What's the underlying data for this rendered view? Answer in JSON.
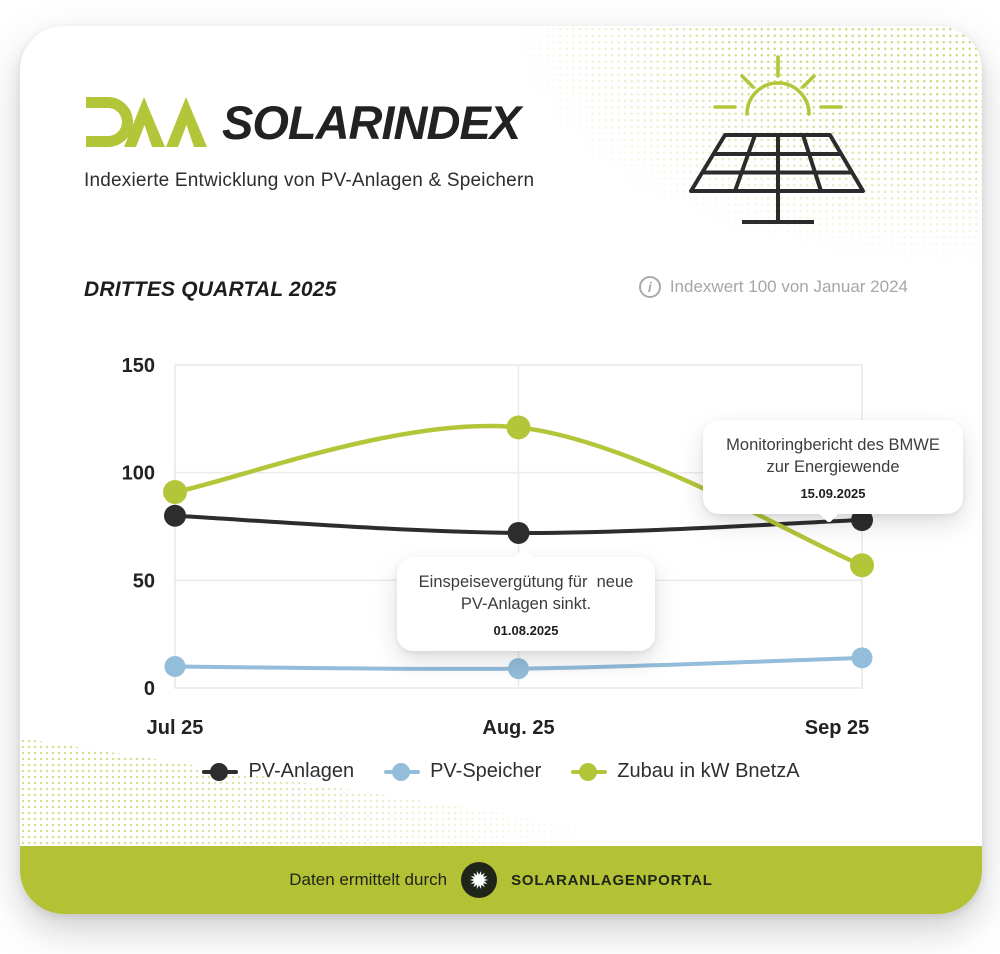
{
  "brand": {
    "logo": "DAA",
    "title": "SOLARINDEX",
    "subtitle": "Indexierte Entwicklung von PV-Anlagen & Speichern"
  },
  "section": {
    "heading": "DRITTES QUARTAL 2025",
    "info_icon": "i",
    "index_note": "Indexwert 100 von Januar 2024"
  },
  "chart_data": {
    "type": "line",
    "categories": [
      "Jul 25",
      "Aug. 25",
      "Sep 25"
    ],
    "series": [
      {
        "name": "PV-Anlagen",
        "color": "#2d2d2d",
        "values": [
          80,
          72,
          78
        ]
      },
      {
        "name": "PV-Speicher",
        "color": "#93bdda",
        "values": [
          10,
          9,
          14
        ]
      },
      {
        "name": "Zubau in kW BnetzA",
        "color": "#b3c63a",
        "values": [
          91,
          121,
          57
        ]
      }
    ],
    "ylim": [
      0,
      150
    ],
    "yticks": [
      0,
      50,
      100,
      150
    ],
    "grid": true,
    "legend_position": "bottom",
    "annotations": [
      {
        "line1": "Einspeisevergütung für  neue",
        "line2": "PV-Anlagen sinkt.",
        "date": "01.08.2025",
        "anchor_category": "Aug. 25",
        "anchor_series": "PV-Anlagen"
      },
      {
        "line1": "Monitoringbericht des BMWE",
        "line2": "zur Energiewende",
        "date": "15.09.2025",
        "anchor_category": "Sep 25",
        "anchor_series": "PV-Anlagen"
      }
    ]
  },
  "footer": {
    "text": "Daten ermittelt durch",
    "brand": "SOLARANLAGENPORTAL"
  },
  "colors": {
    "accent_green": "#b3c63a",
    "footer_green": "#b3c234",
    "line_black": "#2d2d2d",
    "line_blue": "#93bdda",
    "grid": "#ececec",
    "muted_text": "#a6a6a6"
  }
}
